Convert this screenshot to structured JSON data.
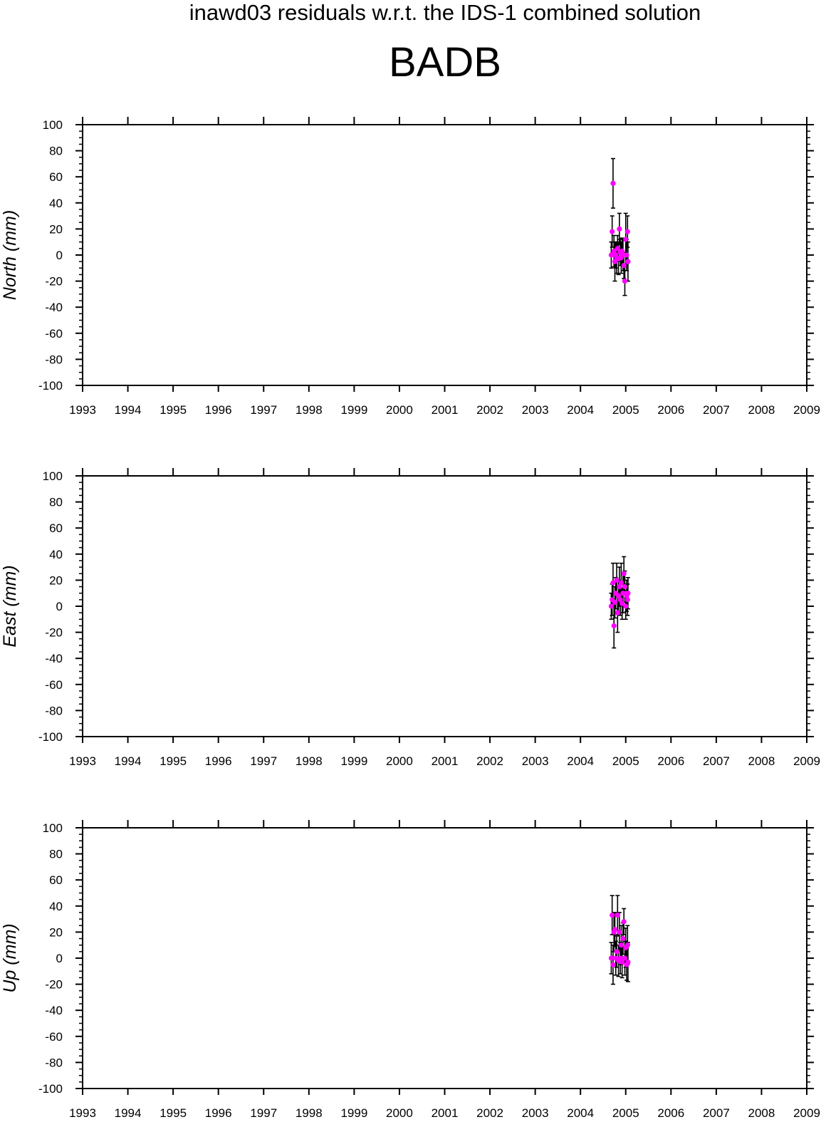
{
  "header": {
    "title": "inawd03 residuals w.r.t. the IDS-1 combined solution",
    "station": "BADB"
  },
  "colors": {
    "point": "#ff00ff",
    "errorbar": "#000000",
    "axis": "#000000"
  },
  "chart_data": [
    {
      "type": "scatter",
      "ylabel": "North (mm)",
      "xlim": [
        1993,
        2009
      ],
      "ylim": [
        -100,
        100
      ],
      "xticks": [
        "1993",
        "1994",
        "1995",
        "1996",
        "1997",
        "1998",
        "1999",
        "2000",
        "2001",
        "2002",
        "2003",
        "2004",
        "2005",
        "2006",
        "2007",
        "2008",
        "2009"
      ],
      "yticks": [
        "100",
        "80",
        "60",
        "40",
        "20",
        "0",
        "-20",
        "-40",
        "-60",
        "-80",
        "-100"
      ],
      "grid": false,
      "points": [
        {
          "x": 2004.68,
          "y": 0,
          "err": 10
        },
        {
          "x": 2004.7,
          "y": 18,
          "err": 12
        },
        {
          "x": 2004.72,
          "y": 55,
          "err": 19
        },
        {
          "x": 2004.74,
          "y": 3,
          "err": 12
        },
        {
          "x": 2004.76,
          "y": -5,
          "err": 15
        },
        {
          "x": 2004.78,
          "y": 0,
          "err": 10
        },
        {
          "x": 2004.8,
          "y": -2,
          "err": 12
        },
        {
          "x": 2004.82,
          "y": 5,
          "err": 10
        },
        {
          "x": 2004.84,
          "y": -3,
          "err": 12
        },
        {
          "x": 2004.86,
          "y": 20,
          "err": 12
        },
        {
          "x": 2004.88,
          "y": 2,
          "err": 10
        },
        {
          "x": 2004.9,
          "y": -2,
          "err": 12
        },
        {
          "x": 2004.92,
          "y": 3,
          "err": 10
        },
        {
          "x": 2004.94,
          "y": 0,
          "err": 12
        },
        {
          "x": 2004.96,
          "y": -8,
          "err": 10
        },
        {
          "x": 2004.98,
          "y": -20,
          "err": 11
        },
        {
          "x": 2005.0,
          "y": 12,
          "err": 20
        },
        {
          "x": 2005.02,
          "y": 0,
          "err": 12
        },
        {
          "x": 2005.04,
          "y": 18,
          "err": 12
        },
        {
          "x": 2005.05,
          "y": -5,
          "err": 15
        }
      ]
    },
    {
      "type": "scatter",
      "ylabel": "East (mm)",
      "xlim": [
        1993,
        2009
      ],
      "ylim": [
        -100,
        100
      ],
      "xticks": [
        "1993",
        "1994",
        "1995",
        "1996",
        "1997",
        "1998",
        "1999",
        "2000",
        "2001",
        "2002",
        "2003",
        "2004",
        "2005",
        "2006",
        "2007",
        "2008",
        "2009"
      ],
      "yticks": [
        "100",
        "80",
        "60",
        "40",
        "20",
        "0",
        "-20",
        "-40",
        "-60",
        "-80",
        "-100"
      ],
      "grid": false,
      "points": [
        {
          "x": 2004.68,
          "y": 0,
          "err": 10
        },
        {
          "x": 2004.7,
          "y": 5,
          "err": 12
        },
        {
          "x": 2004.72,
          "y": 18,
          "err": 15
        },
        {
          "x": 2004.74,
          "y": -15,
          "err": 17
        },
        {
          "x": 2004.76,
          "y": 3,
          "err": 12
        },
        {
          "x": 2004.78,
          "y": 10,
          "err": 12
        },
        {
          "x": 2004.8,
          "y": 20,
          "err": 13
        },
        {
          "x": 2004.82,
          "y": -5,
          "err": 15
        },
        {
          "x": 2004.84,
          "y": 8,
          "err": 12
        },
        {
          "x": 2004.86,
          "y": 15,
          "err": 15
        },
        {
          "x": 2004.88,
          "y": 5,
          "err": 12
        },
        {
          "x": 2004.9,
          "y": 18,
          "err": 15
        },
        {
          "x": 2004.92,
          "y": 2,
          "err": 12
        },
        {
          "x": 2004.94,
          "y": 10,
          "err": 15
        },
        {
          "x": 2004.96,
          "y": 25,
          "err": 13
        },
        {
          "x": 2004.98,
          "y": 15,
          "err": 12
        },
        {
          "x": 2005.0,
          "y": 0,
          "err": 10
        },
        {
          "x": 2005.02,
          "y": 8,
          "err": 12
        },
        {
          "x": 2005.04,
          "y": 5,
          "err": 12
        },
        {
          "x": 2005.05,
          "y": 10,
          "err": 12
        }
      ]
    },
    {
      "type": "scatter",
      "ylabel": "Up (mm)",
      "xlim": [
        1993,
        2009
      ],
      "ylim": [
        -100,
        100
      ],
      "xticks": [
        "1993",
        "1994",
        "1995",
        "1996",
        "1997",
        "1998",
        "1999",
        "2000",
        "2001",
        "2002",
        "2003",
        "2004",
        "2005",
        "2006",
        "2007",
        "2008",
        "2009"
      ],
      "yticks": [
        "100",
        "80",
        "60",
        "40",
        "20",
        "0",
        "-20",
        "-40",
        "-60",
        "-80",
        "-100"
      ],
      "grid": false,
      "points": [
        {
          "x": 2004.68,
          "y": 0,
          "err": 12
        },
        {
          "x": 2004.7,
          "y": 33,
          "err": 15
        },
        {
          "x": 2004.72,
          "y": -5,
          "err": 15
        },
        {
          "x": 2004.74,
          "y": 20,
          "err": 15
        },
        {
          "x": 2004.76,
          "y": 22,
          "err": 13
        },
        {
          "x": 2004.78,
          "y": 0,
          "err": 13
        },
        {
          "x": 2004.8,
          "y": 5,
          "err": 12
        },
        {
          "x": 2004.82,
          "y": 33,
          "err": 15
        },
        {
          "x": 2004.84,
          "y": -2,
          "err": 12
        },
        {
          "x": 2004.86,
          "y": 20,
          "err": 15
        },
        {
          "x": 2004.88,
          "y": 0,
          "err": 12
        },
        {
          "x": 2004.9,
          "y": 10,
          "err": 15
        },
        {
          "x": 2004.92,
          "y": -3,
          "err": 12
        },
        {
          "x": 2004.94,
          "y": 15,
          "err": 12
        },
        {
          "x": 2004.96,
          "y": 28,
          "err": 10
        },
        {
          "x": 2004.98,
          "y": 0,
          "err": 13
        },
        {
          "x": 2005.0,
          "y": 8,
          "err": 15
        },
        {
          "x": 2005.02,
          "y": -5,
          "err": 12
        },
        {
          "x": 2005.04,
          "y": 10,
          "err": 15
        },
        {
          "x": 2005.05,
          "y": -3,
          "err": 15
        }
      ]
    }
  ]
}
